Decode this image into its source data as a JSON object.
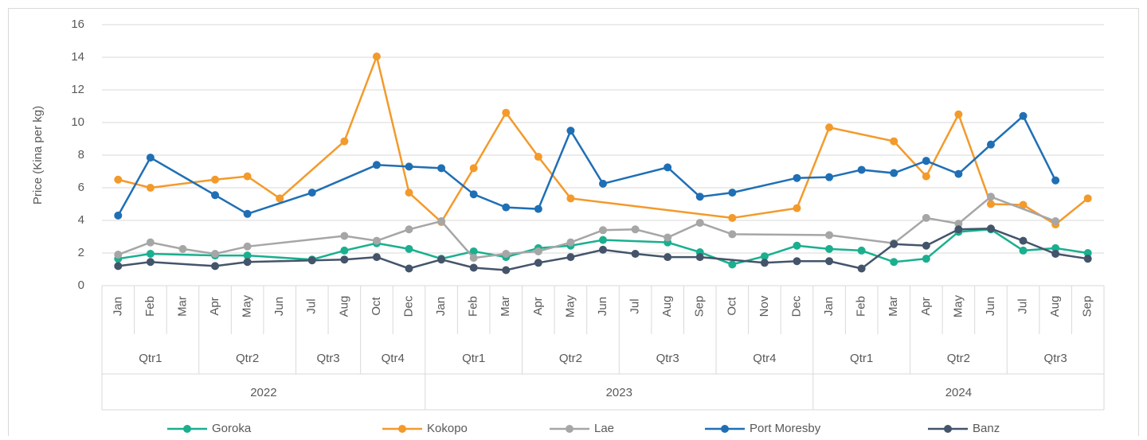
{
  "chart_data": {
    "type": "line",
    "y_label": "Price (Kina per kg)",
    "ylim": [
      0,
      16
    ],
    "yticks": [
      0,
      2,
      4,
      6,
      8,
      10,
      12,
      14,
      16
    ],
    "grid": true,
    "span_gaps": true,
    "legend": "bottom",
    "years": [
      {
        "label": "2022",
        "quarters": [
          {
            "label": "Qtr1",
            "months": [
              "Jan",
              "Feb",
              "Mar"
            ]
          },
          {
            "label": "Qtr2",
            "months": [
              "Apr",
              "May",
              "Jun"
            ]
          },
          {
            "label": "Qtr3",
            "months": [
              "Jul",
              "Aug"
            ]
          },
          {
            "label": "Qtr4",
            "months": [
              "Oct",
              "Dec"
            ]
          }
        ]
      },
      {
        "label": "2023",
        "quarters": [
          {
            "label": "Qtr1",
            "months": [
              "Jan",
              "Feb",
              "Mar"
            ]
          },
          {
            "label": "Qtr2",
            "months": [
              "Apr",
              "May",
              "Jun"
            ]
          },
          {
            "label": "Qtr3",
            "months": [
              "Jul",
              "Aug",
              "Sep"
            ]
          },
          {
            "label": "Qtr4",
            "months": [
              "Oct",
              "Nov",
              "Dec"
            ]
          }
        ]
      },
      {
        "label": "2024",
        "quarters": [
          {
            "label": "Qtr1",
            "months": [
              "Jan",
              "Feb",
              "Mar"
            ]
          },
          {
            "label": "Qtr2",
            "months": [
              "Apr",
              "May",
              "Jun"
            ]
          },
          {
            "label": "Qtr3",
            "months": [
              "Jul",
              "Aug",
              "Sep"
            ]
          }
        ]
      }
    ],
    "series": [
      {
        "name": "Goroka",
        "color": "#1aaf8f",
        "values": [
          1.65,
          1.95,
          null,
          1.85,
          1.85,
          null,
          1.6,
          2.15,
          2.6,
          2.25,
          1.65,
          2.1,
          1.75,
          2.3,
          2.45,
          2.8,
          null,
          2.65,
          2.05,
          1.3,
          1.8,
          2.45,
          2.25,
          2.15,
          1.45,
          1.65,
          3.3,
          3.45,
          2.15,
          2.3,
          2.0
        ]
      },
      {
        "name": "Kokopo",
        "color": "#f39a2b",
        "values": [
          6.5,
          6.0,
          null,
          6.5,
          6.7,
          5.35,
          null,
          8.85,
          14.05,
          5.7,
          3.9,
          7.2,
          10.6,
          7.9,
          5.35,
          null,
          null,
          null,
          null,
          4.15,
          null,
          4.75,
          9.7,
          null,
          8.85,
          6.7,
          10.5,
          5.0,
          4.95,
          3.75,
          5.35
        ]
      },
      {
        "name": "Lae",
        "color": "#a6a6a6",
        "values": [
          1.9,
          2.65,
          2.25,
          1.95,
          2.4,
          null,
          null,
          3.05,
          2.75,
          3.45,
          3.95,
          1.7,
          1.95,
          2.1,
          2.65,
          3.4,
          3.45,
          2.95,
          3.85,
          3.15,
          null,
          null,
          3.1,
          null,
          2.6,
          4.15,
          3.8,
          5.45,
          null,
          3.95,
          null
        ]
      },
      {
        "name": "Port Moresby",
        "color": "#1f6fb5",
        "values": [
          4.3,
          7.85,
          null,
          5.55,
          4.4,
          null,
          5.7,
          null,
          7.4,
          7.3,
          7.2,
          5.6,
          4.8,
          4.7,
          9.5,
          6.25,
          null,
          7.25,
          5.45,
          5.7,
          null,
          6.6,
          6.65,
          7.1,
          6.9,
          7.65,
          6.85,
          8.65,
          10.4,
          6.45,
          null
        ]
      },
      {
        "name": "Banz",
        "color": "#44546a",
        "values": [
          1.2,
          1.45,
          null,
          1.2,
          1.45,
          null,
          1.55,
          1.6,
          1.75,
          1.05,
          1.6,
          1.1,
          0.95,
          1.4,
          1.75,
          2.2,
          1.95,
          1.75,
          1.75,
          null,
          1.4,
          1.5,
          1.5,
          1.05,
          2.55,
          2.45,
          3.45,
          3.5,
          2.75,
          1.95,
          1.65
        ]
      }
    ]
  }
}
